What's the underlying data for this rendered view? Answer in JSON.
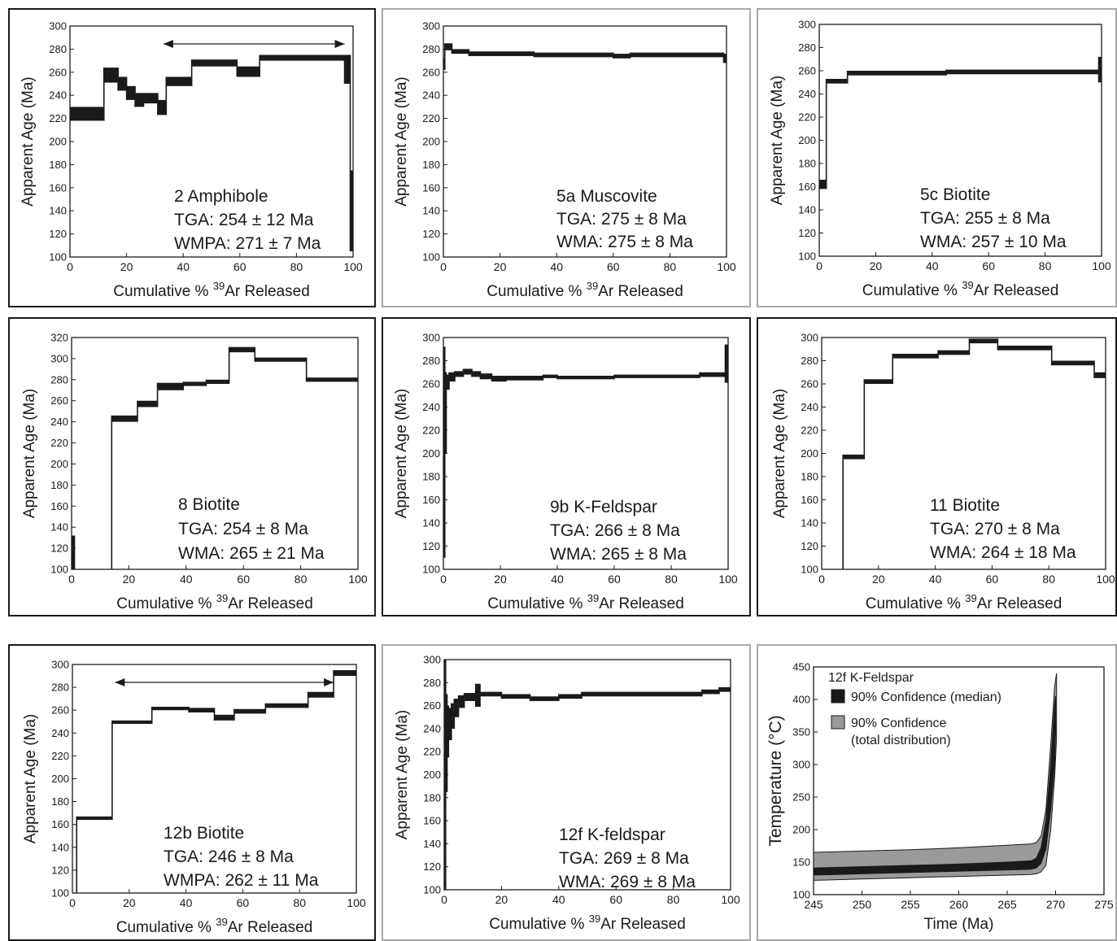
{
  "colors": {
    "ink": "#1a1a1a",
    "band_median": "#1a1a1a",
    "band_total": "#9a9a9a",
    "frame_dark": "#1a1a1a",
    "frame_light": "#a8a8a8"
  },
  "charts": [
    {
      "id": "p1",
      "type": "step",
      "xlim": [
        0,
        100
      ],
      "ylim": [
        100,
        300
      ],
      "xticks": [
        0,
        20,
        40,
        60,
        80,
        100
      ],
      "yticks": [
        100,
        120,
        140,
        160,
        180,
        200,
        220,
        240,
        260,
        280,
        300
      ],
      "ylabel": "Apparent Age (Ma)",
      "xlabel_prefix": "Cumulative % ",
      "xlabel_sup": "39",
      "xlabel_suffix": "Ar Released",
      "annotation": [
        "2 Amphibole",
        "TGA: 254 ± 12 Ma",
        "WMPA: 271 ± 7 Ma"
      ],
      "plateau_arrow": [
        33,
        97
      ],
      "steps": [
        {
          "x0": 0,
          "x1": 12,
          "lo": 218,
          "hi": 230
        },
        {
          "x0": 12,
          "x1": 17,
          "lo": 251,
          "hi": 264
        },
        {
          "x0": 17,
          "x1": 20,
          "lo": 244,
          "hi": 256
        },
        {
          "x0": 20,
          "x1": 23,
          "lo": 236,
          "hi": 248
        },
        {
          "x0": 23,
          "x1": 26,
          "lo": 230,
          "hi": 242
        },
        {
          "x0": 26,
          "x1": 31,
          "lo": 233,
          "hi": 242
        },
        {
          "x0": 31,
          "x1": 34,
          "lo": 223,
          "hi": 236
        },
        {
          "x0": 34,
          "x1": 43,
          "lo": 248,
          "hi": 256
        },
        {
          "x0": 43,
          "x1": 59,
          "lo": 265,
          "hi": 271
        },
        {
          "x0": 59,
          "x1": 67,
          "lo": 256,
          "hi": 265
        },
        {
          "x0": 67,
          "x1": 97,
          "lo": 270,
          "hi": 275
        },
        {
          "x0": 97,
          "x1": 99,
          "lo": 250,
          "hi": 275
        },
        {
          "x0": 99,
          "x1": 100,
          "lo": 105,
          "hi": 175
        }
      ]
    },
    {
      "id": "p2",
      "type": "step",
      "xlim": [
        0,
        100
      ],
      "ylim": [
        100,
        300
      ],
      "xticks": [
        0,
        20,
        40,
        60,
        80,
        100
      ],
      "yticks": [
        100,
        120,
        140,
        160,
        180,
        200,
        220,
        240,
        260,
        280,
        300
      ],
      "ylabel": "Apparent Age (Ma)",
      "xlabel_prefix": "Cumulative % ",
      "xlabel_sup": "39",
      "xlabel_suffix": "Ar Released",
      "annotation": [
        "5a Muscovite",
        "TGA: 275 ± 8 Ma",
        "WMA: 275 ± 8 Ma"
      ],
      "steps": [
        {
          "x0": 0,
          "x1": 0.5,
          "lo": 262,
          "hi": 272
        },
        {
          "x0": 0.5,
          "x1": 3,
          "lo": 279,
          "hi": 285
        },
        {
          "x0": 3,
          "x1": 9,
          "lo": 276,
          "hi": 280
        },
        {
          "x0": 9,
          "x1": 32,
          "lo": 274,
          "hi": 278
        },
        {
          "x0": 32,
          "x1": 60,
          "lo": 273,
          "hi": 277
        },
        {
          "x0": 60,
          "x1": 66,
          "lo": 272,
          "hi": 276
        },
        {
          "x0": 66,
          "x1": 99,
          "lo": 273,
          "hi": 277
        },
        {
          "x0": 99,
          "x1": 100,
          "lo": 268,
          "hi": 276
        }
      ]
    },
    {
      "id": "p3",
      "type": "step",
      "xlim": [
        0,
        100
      ],
      "ylim": [
        100,
        300
      ],
      "xticks": [
        0,
        20,
        40,
        60,
        80,
        100
      ],
      "yticks": [
        100,
        120,
        140,
        160,
        180,
        200,
        220,
        240,
        260,
        280,
        300
      ],
      "ylabel": "Apparent Age (Ma)",
      "xlabel_prefix": "Cumulative % ",
      "xlabel_sup": "39",
      "xlabel_suffix": "Ar Released",
      "annotation": [
        "5c Biotite",
        "TGA: 255 ± 8 Ma",
        "WMA: 257 ± 10 Ma"
      ],
      "steps": [
        {
          "x0": 0,
          "x1": 2.5,
          "lo": 158,
          "hi": 166
        },
        {
          "x0": 2.5,
          "x1": 10,
          "lo": 249,
          "hi": 253
        },
        {
          "x0": 10,
          "x1": 45,
          "lo": 256,
          "hi": 260
        },
        {
          "x0": 45,
          "x1": 51,
          "lo": 257,
          "hi": 261
        },
        {
          "x0": 51,
          "x1": 99,
          "lo": 257,
          "hi": 261
        },
        {
          "x0": 99,
          "x1": 100,
          "lo": 250,
          "hi": 272
        }
      ]
    },
    {
      "id": "p4",
      "type": "step",
      "xlim": [
        0,
        100
      ],
      "ylim": [
        100,
        320
      ],
      "xticks": [
        0,
        20,
        40,
        60,
        80,
        100
      ],
      "yticks": [
        100,
        120,
        140,
        160,
        180,
        200,
        220,
        240,
        260,
        280,
        300,
        320
      ],
      "ylabel": "Apparent Age (Ma)",
      "xlabel_prefix": "Cumulative % ",
      "xlabel_sup": "39",
      "xlabel_suffix": "Ar Released",
      "annotation": [
        "8 Biotite",
        "TGA: 254 ± 8 Ma",
        "WMA: 265 ± 21 Ma"
      ],
      "steps": [
        {
          "x0": 0,
          "x1": 1,
          "lo": 100,
          "hi": 132
        },
        {
          "x0": 1,
          "x1": 14,
          "lo": 99,
          "hi": 100
        },
        {
          "x0": 14,
          "x1": 23,
          "lo": 240,
          "hi": 246
        },
        {
          "x0": 23,
          "x1": 30,
          "lo": 254,
          "hi": 260
        },
        {
          "x0": 30,
          "x1": 39,
          "lo": 270,
          "hi": 277
        },
        {
          "x0": 39,
          "x1": 47,
          "lo": 274,
          "hi": 278
        },
        {
          "x0": 47,
          "x1": 55,
          "lo": 276,
          "hi": 280
        },
        {
          "x0": 55,
          "x1": 64,
          "lo": 306,
          "hi": 311
        },
        {
          "x0": 64,
          "x1": 82,
          "lo": 297,
          "hi": 301
        },
        {
          "x0": 82,
          "x1": 100,
          "lo": 278,
          "hi": 282
        }
      ]
    },
    {
      "id": "p5",
      "type": "step",
      "xlim": [
        0,
        100
      ],
      "ylim": [
        100,
        300
      ],
      "xticks": [
        0,
        20,
        40,
        60,
        80,
        100
      ],
      "yticks": [
        100,
        120,
        140,
        160,
        180,
        200,
        220,
        240,
        260,
        280,
        300
      ],
      "ylabel": "Apparent Age (Ma)",
      "xlabel_prefix": "Cumulative % ",
      "xlabel_sup": "39",
      "xlabel_suffix": "Ar Released",
      "annotation": [
        "9b K-Feldspar",
        "TGA:  266 ± 8 Ma",
        "WMA: 265 ± 8 Ma"
      ],
      "steps": [
        {
          "x0": 0,
          "x1": 0.5,
          "lo": 110,
          "hi": 292
        },
        {
          "x0": 0.5,
          "x1": 1,
          "lo": 200,
          "hi": 270
        },
        {
          "x0": 1,
          "x1": 2,
          "lo": 255,
          "hi": 268
        },
        {
          "x0": 2,
          "x1": 4,
          "lo": 262,
          "hi": 270
        },
        {
          "x0": 4,
          "x1": 7,
          "lo": 266,
          "hi": 271
        },
        {
          "x0": 7,
          "x1": 10,
          "lo": 268,
          "hi": 273
        },
        {
          "x0": 10,
          "x1": 13,
          "lo": 266,
          "hi": 271
        },
        {
          "x0": 13,
          "x1": 17,
          "lo": 264,
          "hi": 269
        },
        {
          "x0": 17,
          "x1": 22,
          "lo": 262,
          "hi": 267
        },
        {
          "x0": 22,
          "x1": 35,
          "lo": 263,
          "hi": 267
        },
        {
          "x0": 35,
          "x1": 40,
          "lo": 265,
          "hi": 268
        },
        {
          "x0": 40,
          "x1": 60,
          "lo": 264,
          "hi": 267
        },
        {
          "x0": 60,
          "x1": 90,
          "lo": 265,
          "hi": 268
        },
        {
          "x0": 90,
          "x1": 99,
          "lo": 266,
          "hi": 270
        },
        {
          "x0": 99,
          "x1": 100,
          "lo": 261,
          "hi": 294
        }
      ]
    },
    {
      "id": "p6",
      "type": "step",
      "xlim": [
        0,
        100
      ],
      "ylim": [
        100,
        300
      ],
      "xticks": [
        0,
        20,
        40,
        60,
        80,
        100
      ],
      "yticks": [
        100,
        120,
        140,
        160,
        180,
        200,
        220,
        240,
        260,
        280,
        300
      ],
      "ylabel": "Apparent Age (Ma)",
      "xlabel_prefix": "Cumulative % ",
      "xlabel_sup": "39",
      "xlabel_suffix": "Ar Released",
      "annotation": [
        "11 Biotite",
        "TGA: 270 ± 8 Ma",
        "WMA: 264 ± 18 Ma"
      ],
      "steps": [
        {
          "x0": 0,
          "x1": 7.5,
          "lo": 99,
          "hi": 100
        },
        {
          "x0": 7.5,
          "x1": 15,
          "lo": 195,
          "hi": 199
        },
        {
          "x0": 15,
          "x1": 25,
          "lo": 260,
          "hi": 264
        },
        {
          "x0": 25,
          "x1": 41,
          "lo": 282,
          "hi": 286
        },
        {
          "x0": 41,
          "x1": 52,
          "lo": 285,
          "hi": 289
        },
        {
          "x0": 52,
          "x1": 62,
          "lo": 295,
          "hi": 299
        },
        {
          "x0": 62,
          "x1": 81,
          "lo": 289,
          "hi": 293
        },
        {
          "x0": 81,
          "x1": 96,
          "lo": 276,
          "hi": 280
        },
        {
          "x0": 96,
          "x1": 100,
          "lo": 265,
          "hi": 270
        }
      ]
    },
    {
      "id": "p7",
      "type": "step",
      "xlim": [
        0,
        100
      ],
      "ylim": [
        100,
        300
      ],
      "xticks": [
        0,
        20,
        40,
        60,
        80,
        100
      ],
      "yticks": [
        100,
        120,
        140,
        160,
        180,
        200,
        220,
        240,
        260,
        280,
        300
      ],
      "ylabel": "Apparent Age (Ma)",
      "xlabel_prefix": "Cumulative % ",
      "xlabel_sup": "39",
      "xlabel_suffix": "Ar Released",
      "annotation": [
        "12b Biotite",
        "TGA:  246 ± 8 Ma",
        "WMPA: 262 ± 11 Ma"
      ],
      "plateau_arrow": [
        15,
        92
      ],
      "steps": [
        {
          "x0": 0,
          "x1": 1.5,
          "lo": 99,
          "hi": 100
        },
        {
          "x0": 1.5,
          "x1": 14,
          "lo": 164,
          "hi": 167
        },
        {
          "x0": 14,
          "x1": 28,
          "lo": 248,
          "hi": 251
        },
        {
          "x0": 28,
          "x1": 41,
          "lo": 260,
          "hi": 263
        },
        {
          "x0": 41,
          "x1": 50,
          "lo": 258,
          "hi": 262
        },
        {
          "x0": 50,
          "x1": 57,
          "lo": 251,
          "hi": 256
        },
        {
          "x0": 57,
          "x1": 68,
          "lo": 257,
          "hi": 261
        },
        {
          "x0": 68,
          "x1": 83,
          "lo": 262,
          "hi": 266
        },
        {
          "x0": 83,
          "x1": 92,
          "lo": 271,
          "hi": 276
        },
        {
          "x0": 92,
          "x1": 100,
          "lo": 290,
          "hi": 295
        }
      ]
    },
    {
      "id": "p8",
      "type": "step",
      "xlim": [
        0,
        100
      ],
      "ylim": [
        100,
        300
      ],
      "xticks": [
        0,
        20,
        40,
        60,
        80,
        100
      ],
      "yticks": [
        100,
        120,
        140,
        160,
        180,
        200,
        220,
        240,
        260,
        280,
        300
      ],
      "ylabel": "Apparent Age (Ma)",
      "xlabel_prefix": "Cumulative % ",
      "xlabel_sup": "39",
      "xlabel_suffix": "Ar Released",
      "annotation": [
        "12f K-feldspar",
        "TGA: 269 ± 8 Ma",
        "WMA: 269 ± 8 Ma"
      ],
      "steps": [
        {
          "x0": 0,
          "x1": 0.5,
          "lo": 100,
          "hi": 300
        },
        {
          "x0": 0.5,
          "x1": 1,
          "lo": 185,
          "hi": 270
        },
        {
          "x0": 1,
          "x1": 1.5,
          "lo": 215,
          "hi": 260
        },
        {
          "x0": 1.5,
          "x1": 2.5,
          "lo": 230,
          "hi": 258
        },
        {
          "x0": 2.5,
          "x1": 3.5,
          "lo": 240,
          "hi": 262
        },
        {
          "x0": 3.5,
          "x1": 5,
          "lo": 250,
          "hi": 266
        },
        {
          "x0": 5,
          "x1": 7,
          "lo": 258,
          "hi": 269
        },
        {
          "x0": 7,
          "x1": 11,
          "lo": 264,
          "hi": 271
        },
        {
          "x0": 11,
          "x1": 12.5,
          "lo": 259,
          "hi": 279
        },
        {
          "x0": 12.5,
          "x1": 20,
          "lo": 268,
          "hi": 272
        },
        {
          "x0": 20,
          "x1": 30,
          "lo": 266,
          "hi": 270
        },
        {
          "x0": 30,
          "x1": 40,
          "lo": 264,
          "hi": 268
        },
        {
          "x0": 40,
          "x1": 48,
          "lo": 266,
          "hi": 270
        },
        {
          "x0": 48,
          "x1": 60,
          "lo": 268,
          "hi": 272
        },
        {
          "x0": 60,
          "x1": 90,
          "lo": 268,
          "hi": 272
        },
        {
          "x0": 90,
          "x1": 96,
          "lo": 270,
          "hi": 274
        },
        {
          "x0": 96,
          "x1": 100,
          "lo": 272,
          "hi": 276
        }
      ]
    },
    {
      "id": "p9",
      "type": "area",
      "xlim": [
        245,
        275
      ],
      "ylim": [
        100,
        450
      ],
      "xticks": [
        245,
        250,
        255,
        260,
        265,
        270,
        275
      ],
      "yticks": [
        100,
        150,
        200,
        250,
        300,
        350,
        400,
        450
      ],
      "ylabel": "Temperature (°C)",
      "xlabel": "Time (Ma)",
      "inset_title": "12f K-Feldspar",
      "legend": [
        {
          "label": "90% Confidence (median)",
          "color": "#1a1a1a"
        },
        {
          "label": "90% Confidence",
          "label2": "(total distribution)",
          "color": "#9a9a9a"
        }
      ],
      "total_band": [
        {
          "t": 245.0,
          "lo": 122,
          "hi": 165
        },
        {
          "t": 250.0,
          "lo": 124,
          "hi": 167
        },
        {
          "t": 255.0,
          "lo": 126,
          "hi": 169
        },
        {
          "t": 260.0,
          "lo": 128,
          "hi": 172
        },
        {
          "t": 265.0,
          "lo": 130,
          "hi": 176
        },
        {
          "t": 267.5,
          "lo": 131,
          "hi": 178
        },
        {
          "t": 268.0,
          "lo": 132,
          "hi": 180
        },
        {
          "t": 268.5,
          "lo": 135,
          "hi": 190
        },
        {
          "t": 269.0,
          "lo": 145,
          "hi": 230
        },
        {
          "t": 269.5,
          "lo": 200,
          "hi": 330
        },
        {
          "t": 269.9,
          "lo": 280,
          "hi": 420
        },
        {
          "t": 270.1,
          "lo": 340,
          "hi": 440
        }
      ],
      "median_band": [
        {
          "t": 245.0,
          "lo": 130,
          "hi": 141
        },
        {
          "t": 250.0,
          "lo": 132,
          "hi": 143
        },
        {
          "t": 255.0,
          "lo": 134,
          "hi": 145
        },
        {
          "t": 260.0,
          "lo": 136,
          "hi": 147
        },
        {
          "t": 265.0,
          "lo": 138,
          "hi": 150
        },
        {
          "t": 267.5,
          "lo": 139,
          "hi": 152
        },
        {
          "t": 268.0,
          "lo": 141,
          "hi": 156
        },
        {
          "t": 268.5,
          "lo": 148,
          "hi": 172
        },
        {
          "t": 269.0,
          "lo": 170,
          "hi": 215
        },
        {
          "t": 269.5,
          "lo": 230,
          "hi": 300
        },
        {
          "t": 269.9,
          "lo": 300,
          "hi": 395
        },
        {
          "t": 270.0,
          "lo": 350,
          "hi": 405
        }
      ]
    }
  ]
}
